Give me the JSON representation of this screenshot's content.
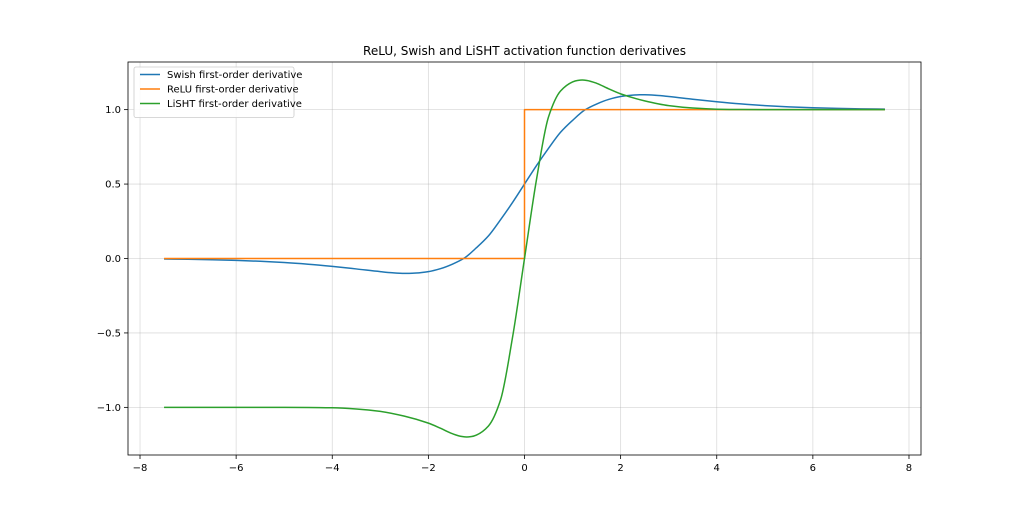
{
  "chart_data": {
    "type": "line",
    "title": "ReLU, Swish and LiSHT activation function derivatives",
    "xlabel": "",
    "ylabel": "",
    "xlim": [
      -8.25,
      8.25
    ],
    "ylim": [
      -1.32,
      1.32
    ],
    "x_ticks": [
      -8,
      -6,
      -4,
      -2,
      0,
      2,
      4,
      6,
      8
    ],
    "x_tick_labels": [
      "−8",
      "−6",
      "−4",
      "−2",
      "0",
      "2",
      "4",
      "6",
      "8"
    ],
    "y_ticks": [
      -1.0,
      -0.5,
      0.0,
      0.5,
      1.0
    ],
    "y_tick_labels": [
      "−1.0",
      "−0.5",
      "0.0",
      "0.5",
      "1.0"
    ],
    "grid": true,
    "legend_position": "upper-left",
    "series": [
      {
        "name": "Swish first-order derivative",
        "color": "#1f77b4",
        "x": [
          -7.5,
          -7.0,
          -6.5,
          -6.0,
          -5.5,
          -5.0,
          -4.5,
          -4.0,
          -3.5,
          -3.0,
          -2.75,
          -2.5,
          -2.4,
          -2.25,
          -2.0,
          -1.75,
          -1.5,
          -1.25,
          -1.0,
          -0.75,
          -0.5,
          -0.25,
          0.0,
          0.25,
          0.5,
          0.75,
          1.0,
          1.25,
          1.5,
          1.75,
          2.0,
          2.25,
          2.4,
          2.5,
          2.75,
          3.0,
          3.5,
          4.0,
          4.5,
          5.0,
          5.5,
          6.0,
          6.5,
          7.0,
          7.5
        ],
        "y": [
          -0.0036,
          -0.0054,
          -0.0083,
          -0.0125,
          -0.0187,
          -0.0271,
          -0.0385,
          -0.053,
          -0.0701,
          -0.0881,
          -0.0956,
          -0.0996,
          -0.0998,
          -0.0978,
          -0.0881,
          -0.0684,
          -0.0378,
          0.0033,
          0.0723,
          0.1519,
          0.26,
          0.3757,
          0.5,
          0.6243,
          0.74,
          0.8481,
          0.9277,
          0.9967,
          1.0378,
          1.0684,
          1.0881,
          1.0978,
          1.0998,
          1.0996,
          1.0956,
          1.0881,
          1.0701,
          1.053,
          1.0385,
          1.0271,
          1.0187,
          1.0125,
          1.0083,
          1.0054,
          1.0036
        ]
      },
      {
        "name": "ReLU first-order derivative",
        "color": "#ff7f0e",
        "x": [
          -7.5,
          0.0,
          0.0,
          7.5
        ],
        "y": [
          0.0,
          0.0,
          1.0,
          1.0
        ]
      },
      {
        "name": "LiSHT first-order derivative",
        "color": "#2ca02c",
        "x": [
          -7.5,
          -6.0,
          -5.0,
          -4.5,
          -4.0,
          -3.5,
          -3.0,
          -2.5,
          -2.0,
          -1.75,
          -1.5,
          -1.3,
          -1.2,
          -1.1,
          -1.0,
          -0.75,
          -0.5,
          -0.25,
          0.0,
          0.25,
          0.5,
          0.75,
          1.0,
          1.1,
          1.2,
          1.3,
          1.5,
          1.75,
          2.0,
          2.5,
          3.0,
          3.5,
          4.0,
          4.5,
          5.0,
          6.0,
          7.5
        ],
        "y": [
          -1.0,
          -1.0,
          -1.0,
          -1.0005,
          -1.003,
          -1.011,
          -1.027,
          -1.059,
          -1.106,
          -1.14,
          -1.177,
          -1.196,
          -1.199,
          -1.196,
          -1.186,
          -1.125,
          -0.9515,
          -0.5317,
          0.0,
          0.5317,
          0.9515,
          1.125,
          1.186,
          1.196,
          1.199,
          1.196,
          1.177,
          1.14,
          1.106,
          1.059,
          1.027,
          1.011,
          1.003,
          1.0005,
          1.0,
          1.0,
          1.0
        ]
      }
    ]
  }
}
